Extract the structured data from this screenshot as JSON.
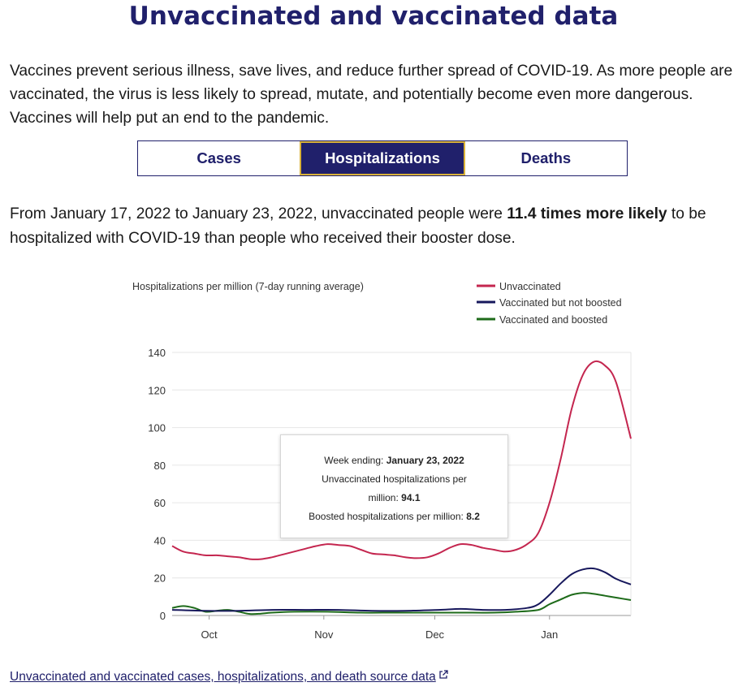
{
  "heading": "Unvaccinated and vaccinated data",
  "intro": "Vaccines prevent serious illness, save lives, and reduce further spread of COVID-19. As more people are vaccinated, the virus is less likely to spread, mutate, and potentially become even more dangerous. Vaccines will help put an end to the pandemic.",
  "tabs": [
    {
      "label": "Cases",
      "active": false
    },
    {
      "label": "Hospitalizations",
      "active": true
    },
    {
      "label": "Deaths",
      "active": false
    }
  ],
  "summary": {
    "before": "From January 17, 2022 to January 23, 2022, unvaccinated people were ",
    "bold": "11.4 times more likely",
    "after": " to be hospitalized with COVID-19 than people who received their booster dose."
  },
  "tooltip": {
    "week_label": "Week ending: ",
    "week_value": "January 23, 2022",
    "unvax_label_1": "Unvaccinated hospitalizations per",
    "unvax_label_2": "million: ",
    "unvax_value": "94.1",
    "boosted_label": "Boosted hospitalizations per million: ",
    "boosted_value": "8.2"
  },
  "source_link": "Unvaccinated and vaccinated cases, hospitalizations, and death source data",
  "chart_data": {
    "type": "line",
    "ylabel": "Hospitalizations per million (7-day running average)",
    "ylim": [
      0,
      140
    ],
    "yticks": [
      0,
      20,
      40,
      60,
      80,
      100,
      120,
      140
    ],
    "x_ticks": [
      "Oct",
      "Nov",
      "Dec",
      "Jan"
    ],
    "grid": "horizontal",
    "legend_position": "top-right",
    "x_range": [
      "2021-09-21",
      "2022-01-23"
    ],
    "series": [
      {
        "name": "Unvaccinated",
        "color": "#c4264f",
        "points": [
          [
            "2021-09-21",
            37
          ],
          [
            "2021-09-24",
            34
          ],
          [
            "2021-09-27",
            33
          ],
          [
            "2021-09-30",
            32
          ],
          [
            "2021-10-03",
            32
          ],
          [
            "2021-10-06",
            31.5
          ],
          [
            "2021-10-09",
            31
          ],
          [
            "2021-10-12",
            30
          ],
          [
            "2021-10-15",
            30
          ],
          [
            "2021-10-18",
            31
          ],
          [
            "2021-10-21",
            32.5
          ],
          [
            "2021-10-24",
            34
          ],
          [
            "2021-10-27",
            35.5
          ],
          [
            "2021-10-30",
            37
          ],
          [
            "2021-11-02",
            38
          ],
          [
            "2021-11-05",
            37.5
          ],
          [
            "2021-11-08",
            37
          ],
          [
            "2021-11-11",
            35
          ],
          [
            "2021-11-14",
            33
          ],
          [
            "2021-11-17",
            32.5
          ],
          [
            "2021-11-20",
            32
          ],
          [
            "2021-11-23",
            31
          ],
          [
            "2021-11-26",
            30.5
          ],
          [
            "2021-11-29",
            31
          ],
          [
            "2021-12-02",
            33
          ],
          [
            "2021-12-05",
            36
          ],
          [
            "2021-12-08",
            38
          ],
          [
            "2021-12-11",
            37.5
          ],
          [
            "2021-12-14",
            36
          ],
          [
            "2021-12-17",
            35
          ],
          [
            "2021-12-20",
            34
          ],
          [
            "2021-12-23",
            35
          ],
          [
            "2021-12-26",
            38
          ],
          [
            "2021-12-29",
            44
          ],
          [
            "2022-01-01",
            60
          ],
          [
            "2022-01-04",
            83
          ],
          [
            "2022-01-07",
            110
          ],
          [
            "2022-01-10",
            128
          ],
          [
            "2022-01-13",
            135
          ],
          [
            "2022-01-16",
            133
          ],
          [
            "2022-01-19",
            124
          ],
          [
            "2022-01-23",
            94.1
          ]
        ]
      },
      {
        "name": "Vaccinated but not boosted",
        "color": "#17185c",
        "points": [
          [
            "2021-09-21",
            3
          ],
          [
            "2021-09-30",
            2.5
          ],
          [
            "2021-10-09",
            2.5
          ],
          [
            "2021-10-18",
            3
          ],
          [
            "2021-10-27",
            3
          ],
          [
            "2021-11-05",
            3
          ],
          [
            "2021-11-14",
            2.5
          ],
          [
            "2021-11-23",
            2.5
          ],
          [
            "2021-12-02",
            3
          ],
          [
            "2021-12-08",
            3.5
          ],
          [
            "2021-12-14",
            3
          ],
          [
            "2021-12-20",
            3
          ],
          [
            "2021-12-26",
            4
          ],
          [
            "2021-12-29",
            6
          ],
          [
            "2022-01-01",
            11
          ],
          [
            "2022-01-04",
            17
          ],
          [
            "2022-01-07",
            22
          ],
          [
            "2022-01-10",
            24.5
          ],
          [
            "2022-01-13",
            25
          ],
          [
            "2022-01-16",
            23
          ],
          [
            "2022-01-19",
            19.5
          ],
          [
            "2022-01-23",
            16.5
          ]
        ]
      },
      {
        "name": "Vaccinated and boosted",
        "color": "#1e6b1a",
        "points": [
          [
            "2021-09-21",
            4
          ],
          [
            "2021-09-24",
            5
          ],
          [
            "2021-09-27",
            4
          ],
          [
            "2021-09-30",
            2
          ],
          [
            "2021-10-03",
            2.5
          ],
          [
            "2021-10-06",
            3
          ],
          [
            "2021-10-09",
            2
          ],
          [
            "2021-10-12",
            0.8
          ],
          [
            "2021-10-15",
            1
          ],
          [
            "2021-10-18",
            1.5
          ],
          [
            "2021-10-24",
            2
          ],
          [
            "2021-11-02",
            2
          ],
          [
            "2021-11-11",
            1.5
          ],
          [
            "2021-11-20",
            1.5
          ],
          [
            "2021-11-29",
            1.5
          ],
          [
            "2021-12-08",
            1.5
          ],
          [
            "2021-12-17",
            1.5
          ],
          [
            "2021-12-23",
            2
          ],
          [
            "2021-12-29",
            3
          ],
          [
            "2022-01-01",
            6
          ],
          [
            "2022-01-04",
            8.5
          ],
          [
            "2022-01-07",
            11
          ],
          [
            "2022-01-10",
            12
          ],
          [
            "2022-01-13",
            11.5
          ],
          [
            "2022-01-16",
            10.5
          ],
          [
            "2022-01-19",
            9.5
          ],
          [
            "2022-01-23",
            8.2
          ]
        ]
      }
    ]
  }
}
